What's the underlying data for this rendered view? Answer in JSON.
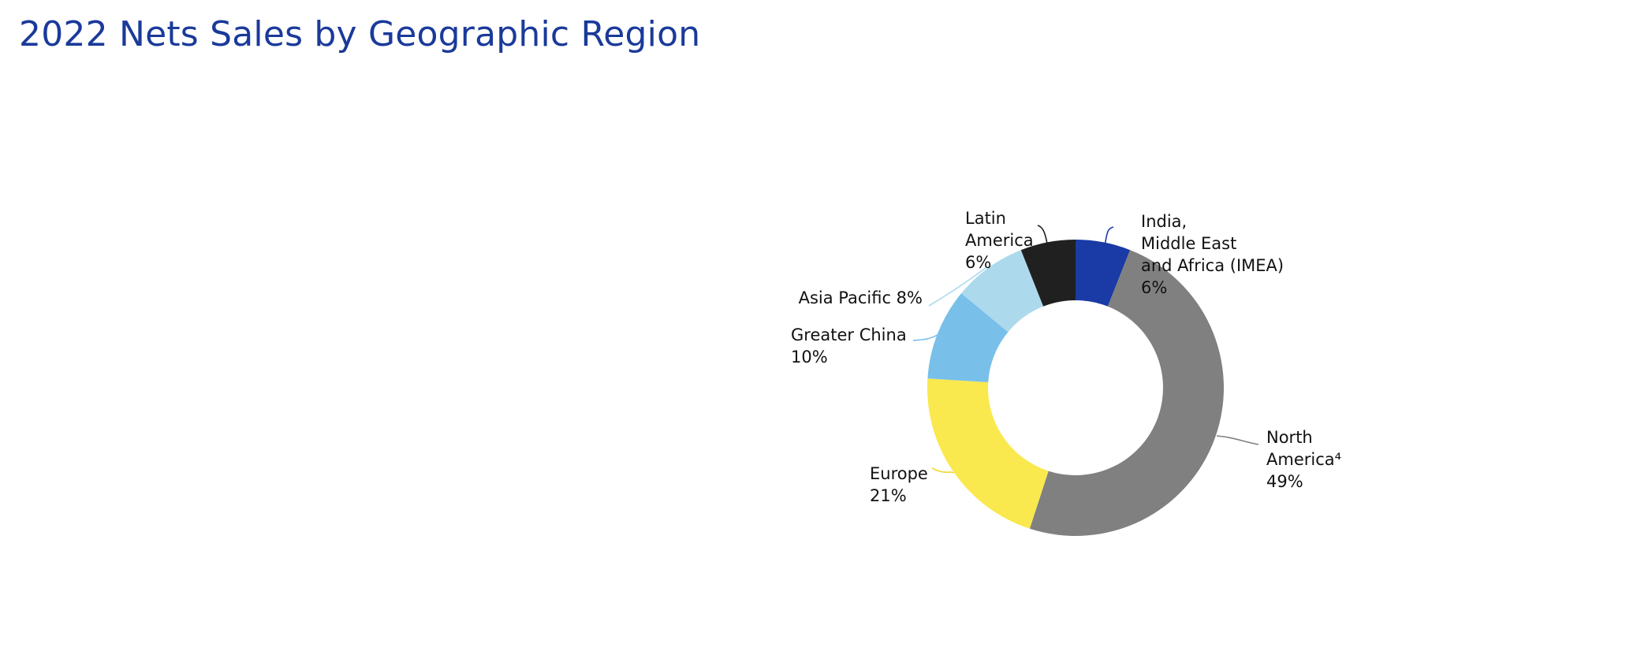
{
  "header": {
    "title": "2022 Nets Sales by Geographic Region"
  },
  "chart_data": {
    "type": "pie",
    "variant": "donut",
    "title": "2022 Nets Sales by Geographic Region",
    "unit": "%",
    "slices": [
      {
        "name": "India, Middle East and Africa (IMEA)",
        "value": 6,
        "color": "#1a3aa5",
        "label_lines": [
          "India,",
          "Middle East",
          "and Africa (IMEA)",
          "6%"
        ]
      },
      {
        "name": "North America⁴",
        "value": 49,
        "color": "#808080",
        "label_lines": [
          "North",
          "America⁴",
          "49%"
        ]
      },
      {
        "name": "Europe",
        "value": 21,
        "color": "#fae84f",
        "label_lines": [
          "Europe",
          "21%"
        ]
      },
      {
        "name": "Greater China",
        "value": 10,
        "color": "#78c0ea",
        "label_lines": [
          "Greater China",
          "10%"
        ]
      },
      {
        "name": "Asia Pacific",
        "value": 8,
        "color": "#acdaec",
        "label_lines": [
          "Asia Pacific  8%"
        ]
      },
      {
        "name": "Latin America",
        "value": 6,
        "color": "#212021",
        "label_lines": [
          "Latin",
          "America",
          "6%"
        ]
      }
    ]
  }
}
